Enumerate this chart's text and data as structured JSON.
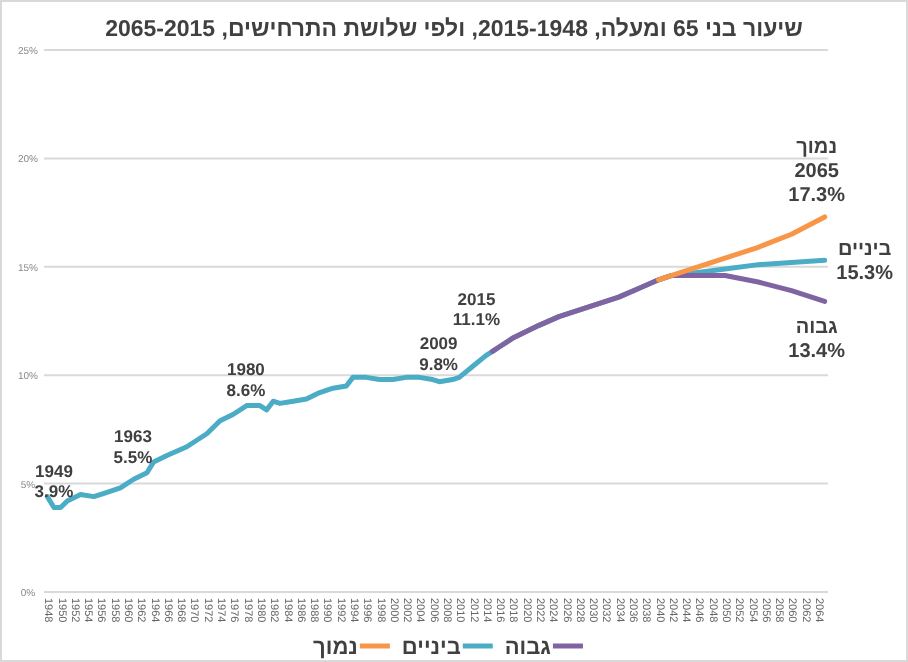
{
  "chart_data": {
    "type": "line",
    "title": "שיעור בני 65 ומעלה, 2015-1948, ולפי שלושת התרחישים, 2065-2015",
    "series": [
      {
        "name": "נמוך",
        "color": "#f79646",
        "x": [
          2040,
          2042,
          2045,
          2050,
          2055,
          2060,
          2065
        ],
        "values": [
          14.4,
          14.6,
          14.9,
          15.4,
          15.9,
          16.5,
          17.3
        ]
      },
      {
        "name": "ביניים",
        "color": "#4bacc6",
        "x": [
          1948,
          1949,
          1950,
          1951,
          1953,
          1955,
          1957,
          1959,
          1961,
          1963,
          1964,
          1966,
          1969,
          1972,
          1974,
          1976,
          1978,
          1980,
          1981,
          1982,
          1983,
          1985,
          1987,
          1989,
          1991,
          1993,
          1994,
          1996,
          1998,
          2000,
          2002,
          2004,
          2006,
          2007,
          2009,
          2010,
          2012,
          2014,
          2015,
          2016,
          2018,
          2020,
          2022,
          2025,
          2028,
          2031,
          2034,
          2037,
          2040,
          2042,
          2045,
          2050,
          2055,
          2060,
          2065
        ],
        "values": [
          4.4,
          3.9,
          3.9,
          4.2,
          4.5,
          4.4,
          4.6,
          4.8,
          5.2,
          5.5,
          6.0,
          6.3,
          6.7,
          7.3,
          7.9,
          8.2,
          8.6,
          8.6,
          8.4,
          8.8,
          8.7,
          8.8,
          8.9,
          9.2,
          9.4,
          9.5,
          9.9,
          9.9,
          9.8,
          9.8,
          9.9,
          9.9,
          9.8,
          9.7,
          9.8,
          9.9,
          10.4,
          10.9,
          11.1,
          11.3,
          11.7,
          12.0,
          12.3,
          12.7,
          13.0,
          13.3,
          13.6,
          14.0,
          14.4,
          14.6,
          14.7,
          14.9,
          15.1,
          15.2,
          15.3
        ]
      },
      {
        "name": "גבוה",
        "color": "#8064a2",
        "x": [
          2015,
          2016,
          2018,
          2020,
          2022,
          2025,
          2028,
          2031,
          2034,
          2037,
          2040,
          2042,
          2045,
          2050,
          2055,
          2060,
          2065
        ],
        "values": [
          11.1,
          11.3,
          11.7,
          12.0,
          12.3,
          12.7,
          13.0,
          13.3,
          13.6,
          14.0,
          14.4,
          14.6,
          14.6,
          14.6,
          14.3,
          13.9,
          13.4
        ]
      }
    ],
    "xlim": [
      1947.5,
      2065.5
    ],
    "xticks": [
      1948,
      1950,
      1952,
      1954,
      1956,
      1958,
      1960,
      1962,
      1964,
      1966,
      1968,
      1970,
      1972,
      1974,
      1976,
      1978,
      1980,
      1982,
      1984,
      1986,
      1988,
      1990,
      1992,
      1994,
      1996,
      1998,
      2000,
      2002,
      2004,
      2006,
      2008,
      2010,
      2012,
      2014,
      2016,
      2018,
      2020,
      2022,
      2024,
      2026,
      2028,
      2030,
      2032,
      2034,
      2036,
      2038,
      2040,
      2042,
      2044,
      2046,
      2048,
      2050,
      2052,
      2054,
      2056,
      2058,
      2060,
      2062,
      2064
    ],
    "ylim": [
      0,
      25
    ],
    "yticks": [
      {
        "value": 0,
        "label": "0%"
      },
      {
        "value": 5,
        "label": "5%"
      },
      {
        "value": 10,
        "label": "10%"
      },
      {
        "value": 15,
        "label": "15%"
      },
      {
        "value": 20,
        "label": "20%"
      },
      {
        "value": 25,
        "label": "25%"
      }
    ],
    "grid": "y",
    "legend": "bottom",
    "annotations": [
      {
        "text": "1949\n3.9%",
        "x": 1949,
        "y": 3.9
      },
      {
        "text": "1963\n5.5%",
        "x": 1963,
        "y": 5.5
      },
      {
        "text": "1980\n8.6%",
        "x": 1980,
        "y": 8.6
      },
      {
        "text": "2009\n9.8%",
        "x": 2009,
        "y": 9.8
      },
      {
        "text": "2015\n11.1%",
        "x": 2015,
        "y": 11.1
      },
      {
        "text": "נמוך\n2065\n17.3%",
        "x": 2065,
        "y": 17.3
      },
      {
        "text": "ביניים\n15.3%",
        "x": 2065,
        "y": 15.3
      },
      {
        "text": "גבוה\n13.4%",
        "x": 2065,
        "y": 13.4
      }
    ]
  }
}
